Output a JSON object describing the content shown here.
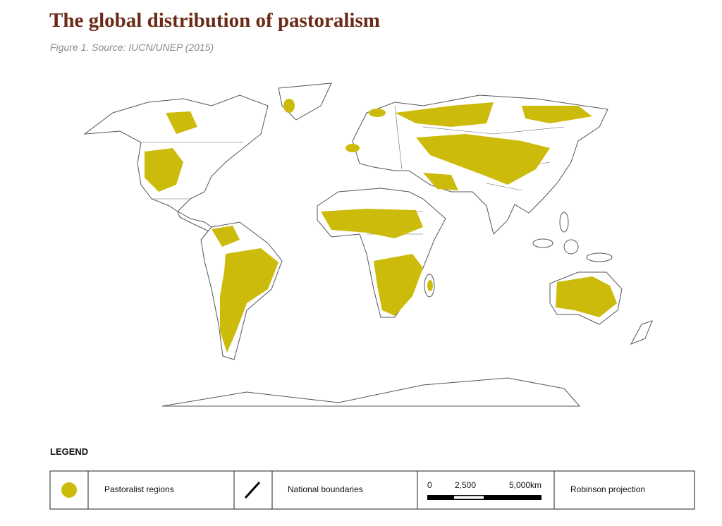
{
  "header": {
    "title": "The global distribution of pastoralism",
    "subtitle": "Figure 1. Source: IUCN/UNEP (2015)"
  },
  "legend": {
    "heading": "LEGEND",
    "items": [
      "Pastoralist regions",
      "National boundaries",
      "Robinson projection"
    ],
    "scale_labels": [
      "0",
      "2,500",
      "5,000km"
    ]
  }
}
